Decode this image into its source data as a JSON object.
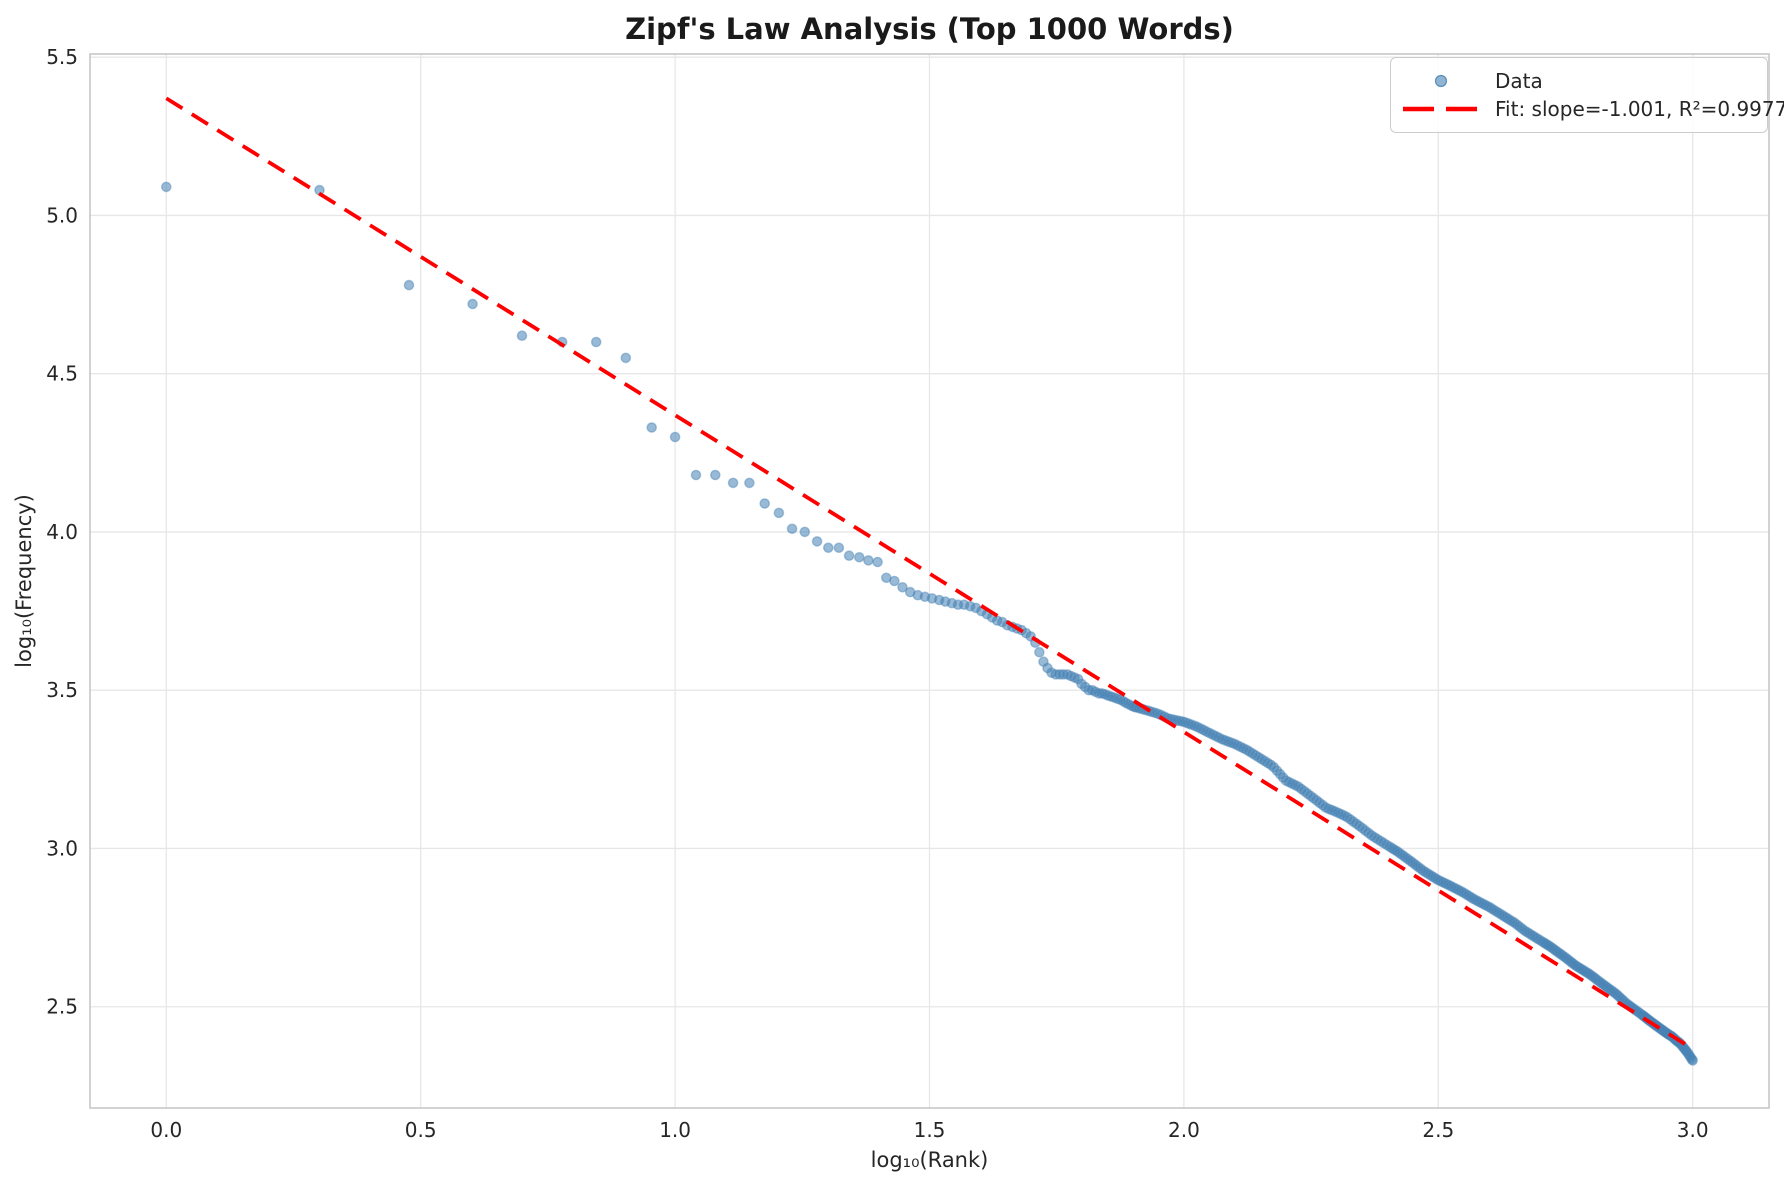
{
  "title": "Zipf's Law Analysis (Top 1000 Words)",
  "legend": {
    "position": "upper right",
    "entries": [
      {
        "label": "Data",
        "glyph": "scatter-marker-icon"
      },
      {
        "label": "Fit: slope=-1.001, R²=0.9977",
        "glyph": "dashed-line-icon"
      }
    ]
  },
  "colors": {
    "scatter": "#4682b4",
    "scatter_alpha": 0.55,
    "fit_line": "#ff0000",
    "grid": "#e7e7e7",
    "spine": "#c4c4c4",
    "text": "#262626"
  },
  "chart_data": {
    "type": "scatter",
    "title": "Zipf's Law Analysis (Top 1000 Words)",
    "xlabel": "log₁₀(Rank)",
    "ylabel": "log₁₀(Frequency)",
    "xlim": [
      -0.15,
      3.15
    ],
    "ylim": [
      2.18,
      5.51
    ],
    "x_ticks": [
      0.0,
      0.5,
      1.0,
      1.5,
      2.0,
      2.5,
      3.0
    ],
    "y_ticks": [
      2.5,
      3.0,
      3.5,
      4.0,
      4.5,
      5.0,
      5.5
    ],
    "grid": true,
    "series": [
      {
        "name": "Data",
        "type": "scatter",
        "color": "#4682b4",
        "alpha": 0.6,
        "points": [
          [
            0.0,
            5.09
          ],
          [
            0.301,
            5.08
          ],
          [
            0.477,
            4.78
          ],
          [
            0.602,
            4.72
          ],
          [
            0.699,
            4.62
          ],
          [
            0.778,
            4.6
          ],
          [
            0.845,
            4.6
          ],
          [
            0.903,
            4.55
          ],
          [
            0.954,
            4.33
          ],
          [
            1.0,
            4.3
          ],
          [
            1.041,
            4.18
          ],
          [
            1.079,
            4.18
          ],
          [
            1.114,
            4.155
          ],
          [
            1.146,
            4.155
          ],
          [
            1.176,
            4.09
          ],
          [
            1.204,
            4.06
          ],
          [
            1.23,
            4.01
          ],
          [
            1.255,
            4.0
          ],
          [
            1.279,
            3.97
          ],
          [
            1.301,
            3.95
          ],
          [
            1.322,
            3.95
          ],
          [
            1.342,
            3.925
          ],
          [
            1.362,
            3.92
          ],
          [
            1.38,
            3.91
          ],
          [
            1.398,
            3.905
          ],
          [
            1.415,
            3.855
          ],
          [
            1.431,
            3.845
          ],
          [
            1.447,
            3.825
          ],
          [
            1.462,
            3.81
          ],
          [
            1.477,
            3.8
          ],
          [
            1.491,
            3.795
          ],
          [
            1.505,
            3.79
          ],
          [
            1.519,
            3.785
          ],
          [
            1.531,
            3.78
          ],
          [
            1.544,
            3.775
          ],
          [
            1.556,
            3.77
          ],
          [
            1.568,
            3.77
          ],
          [
            1.58,
            3.765
          ],
          [
            1.591,
            3.76
          ],
          [
            1.602,
            3.75
          ],
          [
            1.613,
            3.74
          ],
          [
            1.623,
            3.73
          ],
          [
            1.633,
            3.72
          ],
          [
            1.643,
            3.715
          ],
          [
            1.653,
            3.705
          ],
          [
            1.663,
            3.7
          ],
          [
            1.672,
            3.695
          ],
          [
            1.681,
            3.69
          ],
          [
            1.69,
            3.68
          ],
          [
            1.699,
            3.67
          ],
          [
            1.708,
            3.65
          ],
          [
            1.716,
            3.62
          ],
          [
            1.724,
            3.59
          ],
          [
            1.732,
            3.57
          ],
          [
            1.74,
            3.555
          ],
          [
            1.748,
            3.55
          ],
          [
            1.756,
            3.55
          ],
          [
            1.763,
            3.55
          ],
          [
            1.771,
            3.55
          ],
          [
            1.778,
            3.545
          ],
          [
            1.785,
            3.54
          ],
          [
            1.792,
            3.535
          ],
          [
            1.799,
            3.52
          ],
          [
            1.806,
            3.51
          ],
          [
            1.813,
            3.5
          ],
          [
            1.82,
            3.5
          ],
          [
            1.826,
            3.495
          ],
          [
            1.833,
            3.49
          ],
          [
            1.839,
            3.49
          ],
          [
            1.845,
            3.487
          ],
          [
            1.851,
            3.483
          ],
          [
            1.857,
            3.48
          ],
          [
            1.863,
            3.477
          ],
          [
            1.869,
            3.473
          ],
          [
            1.875,
            3.47
          ],
          [
            1.881,
            3.465
          ],
          [
            1.886,
            3.46
          ],
          [
            1.892,
            3.455
          ],
          [
            1.898,
            3.45
          ],
          [
            1.903,
            3.447
          ]
        ],
        "dense_band_knots": [
          [
            1.903,
            3.447
          ],
          [
            1.93,
            3.435
          ],
          [
            1.95,
            3.425
          ],
          [
            1.97,
            3.41
          ],
          [
            2.0,
            3.4
          ],
          [
            2.025,
            3.385
          ],
          [
            2.05,
            3.365
          ],
          [
            2.075,
            3.345
          ],
          [
            2.1,
            3.33
          ],
          [
            2.125,
            3.31
          ],
          [
            2.15,
            3.285
          ],
          [
            2.175,
            3.26
          ],
          [
            2.2,
            3.215
          ],
          [
            2.225,
            3.195
          ],
          [
            2.25,
            3.165
          ],
          [
            2.28,
            3.128
          ],
          [
            2.3,
            3.115
          ],
          [
            2.32,
            3.1
          ],
          [
            2.35,
            3.065
          ],
          [
            2.37,
            3.04
          ],
          [
            2.4,
            3.01
          ],
          [
            2.42,
            2.99
          ],
          [
            2.45,
            2.955
          ],
          [
            2.47,
            2.93
          ],
          [
            2.5,
            2.9
          ],
          [
            2.52,
            2.885
          ],
          [
            2.55,
            2.86
          ],
          [
            2.57,
            2.84
          ],
          [
            2.6,
            2.815
          ],
          [
            2.62,
            2.795
          ],
          [
            2.65,
            2.765
          ],
          [
            2.67,
            2.74
          ],
          [
            2.7,
            2.71
          ],
          [
            2.72,
            2.69
          ],
          [
            2.75,
            2.655
          ],
          [
            2.77,
            2.63
          ],
          [
            2.8,
            2.6
          ],
          [
            2.82,
            2.575
          ],
          [
            2.85,
            2.54
          ],
          [
            2.87,
            2.51
          ],
          [
            2.9,
            2.475
          ],
          [
            2.92,
            2.45
          ],
          [
            2.95,
            2.415
          ],
          [
            2.96,
            2.405
          ],
          [
            2.97,
            2.39
          ],
          [
            2.975,
            2.385
          ],
          [
            2.985,
            2.365
          ],
          [
            2.99,
            2.355
          ],
          [
            3.0,
            2.33
          ]
        ]
      },
      {
        "name": "Fit",
        "type": "line",
        "style": "dashed",
        "color": "#ff0000",
        "slope": -1.001,
        "intercept": 5.37,
        "r_squared": 0.9977,
        "x_range": [
          0.0,
          3.0
        ]
      }
    ]
  }
}
